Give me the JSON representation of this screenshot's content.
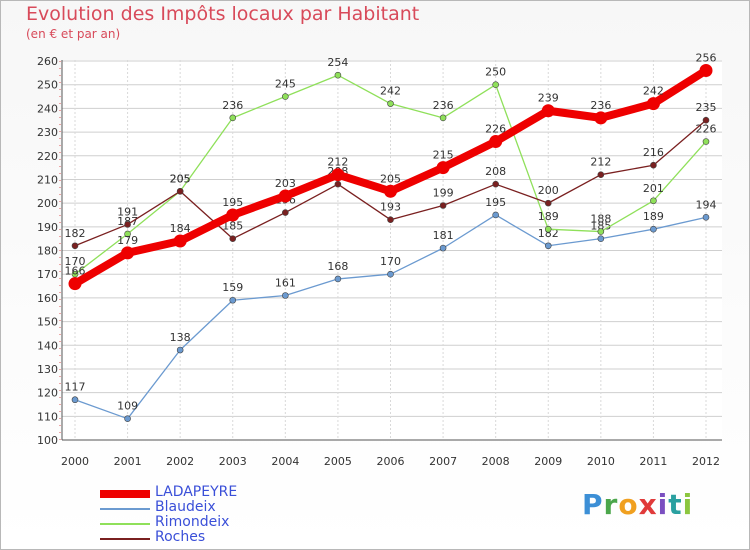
{
  "header": {
    "title": "Evolution des Impôts locaux par Habitant",
    "subtitle": "(en € et par an)"
  },
  "logo": {
    "text": "Proxiti",
    "letters": [
      "P",
      "r",
      "o",
      "x",
      "i",
      "t",
      "i"
    ]
  },
  "chart_data": {
    "type": "line",
    "title": "Evolution des Impôts locaux par Habitant",
    "subtitle": "(en € et par an)",
    "xlabel": "",
    "ylabel": "",
    "x": [
      "2000",
      "2001",
      "2002",
      "2003",
      "2004",
      "2005",
      "2006",
      "2007",
      "2008",
      "2009",
      "2010",
      "2011",
      "2012"
    ],
    "ylim": [
      100,
      260
    ],
    "yticks": [
      100,
      110,
      120,
      130,
      140,
      150,
      160,
      170,
      180,
      190,
      200,
      210,
      220,
      230,
      240,
      250,
      260
    ],
    "grid": true,
    "legend_position": "bottom-left",
    "series": [
      {
        "name": "LADAPEYRE",
        "color": "#ee0000",
        "emphasis": true,
        "values": [
          166,
          179,
          184,
          195,
          203,
          212,
          205,
          215,
          226,
          239,
          236,
          242,
          256
        ]
      },
      {
        "name": "Blaudeix",
        "color": "#6b9ad0",
        "emphasis": false,
        "values": [
          117,
          109,
          138,
          159,
          161,
          168,
          170,
          181,
          195,
          182,
          185,
          189,
          194
        ]
      },
      {
        "name": "Rimondeix",
        "color": "#8fe05a",
        "emphasis": false,
        "values": [
          170,
          187,
          205,
          236,
          245,
          254,
          242,
          236,
          250,
          189,
          188,
          201,
          226
        ]
      },
      {
        "name": "Roches",
        "color": "#7a2020",
        "emphasis": false,
        "values": [
          182,
          191,
          205,
          185,
          196,
          208,
          193,
          199,
          208,
          200,
          212,
          216,
          235
        ]
      }
    ]
  }
}
